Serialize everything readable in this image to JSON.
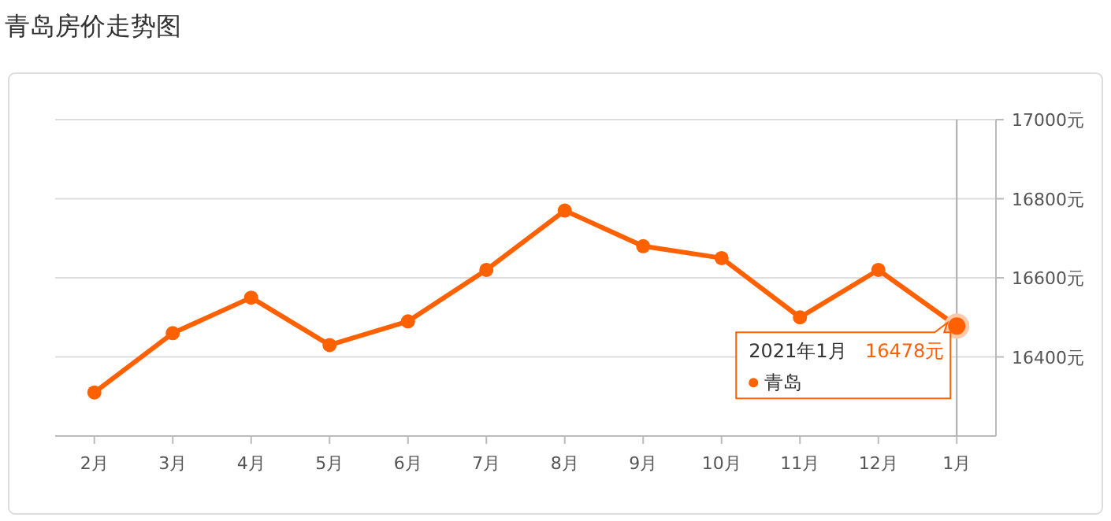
{
  "chart_data": {
    "type": "line",
    "title": "青岛房价走势图",
    "categories": [
      "2月",
      "3月",
      "4月",
      "5月",
      "6月",
      "7月",
      "8月",
      "9月",
      "10月",
      "11月",
      "12月",
      "1月"
    ],
    "series": [
      {
        "name": "青岛",
        "color": "#ff6000",
        "values": [
          16310,
          16460,
          16550,
          16430,
          16490,
          16620,
          16770,
          16680,
          16650,
          16500,
          16620,
          16478
        ],
        "value_labels": [
          null,
          null,
          null,
          null,
          null,
          null,
          null,
          null,
          null,
          null,
          null,
          "16478元"
        ]
      }
    ],
    "ylim": [
      16200,
      17000
    ],
    "yticks": [
      {
        "value": 16400,
        "label": "16400元"
      },
      {
        "value": 16600,
        "label": "16600元"
      },
      {
        "value": 16800,
        "label": "16800元"
      },
      {
        "value": 17000,
        "label": "17000元"
      }
    ],
    "grid": "y",
    "marker": "circle",
    "line_style": "solid",
    "ref_lines": [
      {
        "axis": "x",
        "value": "1月",
        "color": "#aaaaaa"
      }
    ],
    "annotations": [
      "2021年1月"
    ]
  }
}
